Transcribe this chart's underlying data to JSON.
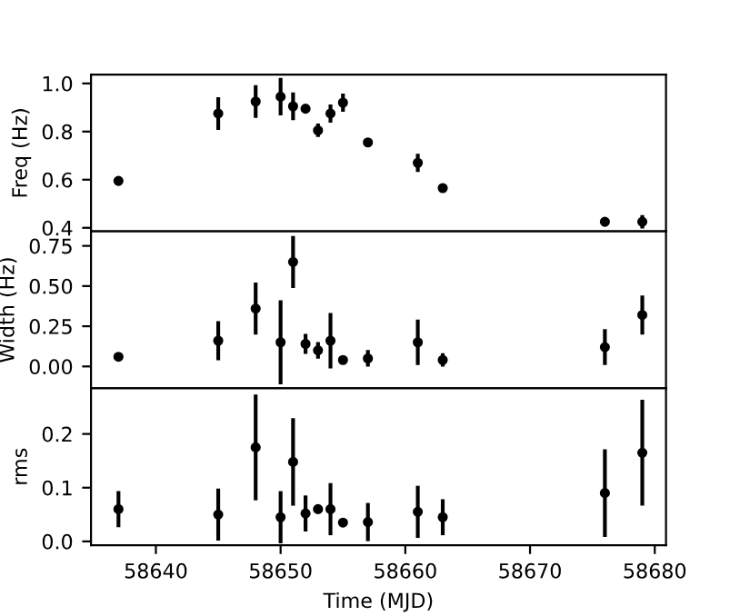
{
  "chart_data": [
    {
      "type": "scatter",
      "ylabel": "Freq (Hz)",
      "x": [
        58637,
        58645,
        58648,
        58650,
        58651,
        58652,
        58653,
        58654,
        58655,
        58657,
        58661,
        58663,
        58676,
        58679
      ],
      "series": [
        {
          "color": "#000000",
          "values": [
            0.595,
            0.875,
            0.925,
            0.945,
            0.905,
            0.895,
            0.805,
            0.875,
            0.92,
            0.755,
            0.67,
            0.565,
            0.425,
            0.425
          ],
          "errors": [
            null,
            0.06,
            0.06,
            0.07,
            0.05,
            null,
            0.02,
            0.03,
            0.03,
            null,
            0.03,
            null,
            null,
            0.02
          ]
        }
      ],
      "xlim": [
        58634.8,
        58680.9
      ],
      "ylim": [
        0.385,
        1.037
      ],
      "yticks": [
        0.4,
        0.6,
        0.8,
        {
          "value": 1.0,
          "label": "1.0"
        }
      ],
      "tick_labels": "y",
      "marker": "circle",
      "grid": false,
      "legend": false
    },
    {
      "type": "scatter",
      "ylabel": "Width (Hz)",
      "x": [
        58637,
        58645,
        58648,
        58650,
        58651,
        58652,
        58653,
        58654,
        58655,
        58657,
        58661,
        58663,
        58676,
        58679
      ],
      "series": [
        {
          "color": "#000000",
          "values": [
            0.06,
            0.16,
            0.36,
            0.15,
            0.65,
            0.14,
            0.1,
            0.16,
            0.04,
            0.05,
            0.15,
            0.04,
            0.12,
            0.32
          ],
          "errors": [
            null,
            0.11,
            0.15,
            0.25,
            0.15,
            0.05,
            0.04,
            0.16,
            null,
            0.04,
            0.13,
            0.03,
            0.1,
            0.11
          ]
        }
      ],
      "xlim": [
        58634.8,
        58680.9
      ],
      "ylim": [
        -0.136,
        0.84
      ],
      "yticks": [
        {
          "value": 0.0,
          "label": "0.00"
        },
        {
          "value": 0.25,
          "label": "0.25"
        },
        {
          "value": 0.5,
          "label": "0.50"
        },
        {
          "value": 0.75,
          "label": "0.75"
        }
      ],
      "tick_labels": "y",
      "marker": "circle",
      "grid": false,
      "legend": false
    },
    {
      "type": "scatter",
      "ylabel": "rms",
      "xlabel": "Time (MJD)",
      "x": [
        58637,
        58645,
        58648,
        58650,
        58651,
        58652,
        58653,
        58654,
        58655,
        58657,
        58661,
        58663,
        58676,
        58679
      ],
      "series": [
        {
          "color": "#000000",
          "values": [
            0.06,
            0.05,
            0.175,
            0.045,
            0.148,
            0.052,
            0.06,
            0.06,
            0.035,
            0.036,
            0.055,
            0.045,
            0.09,
            0.165
          ],
          "errors": [
            0.03,
            0.045,
            0.095,
            0.045,
            0.078,
            0.03,
            null,
            0.045,
            null,
            0.032,
            0.045,
            0.03,
            0.078,
            0.095
          ]
        }
      ],
      "xlim": [
        58634.8,
        58680.9
      ],
      "xticks": [
        58640,
        58650,
        58660,
        58670,
        58680
      ],
      "ylim": [
        -0.007,
        0.285
      ],
      "yticks": [
        {
          "value": 0.0,
          "label": "0.0"
        },
        {
          "value": 0.1,
          "label": "0.1"
        },
        {
          "value": 0.2,
          "label": "0.2"
        }
      ],
      "marker": "circle",
      "grid": false,
      "legend": false
    }
  ]
}
